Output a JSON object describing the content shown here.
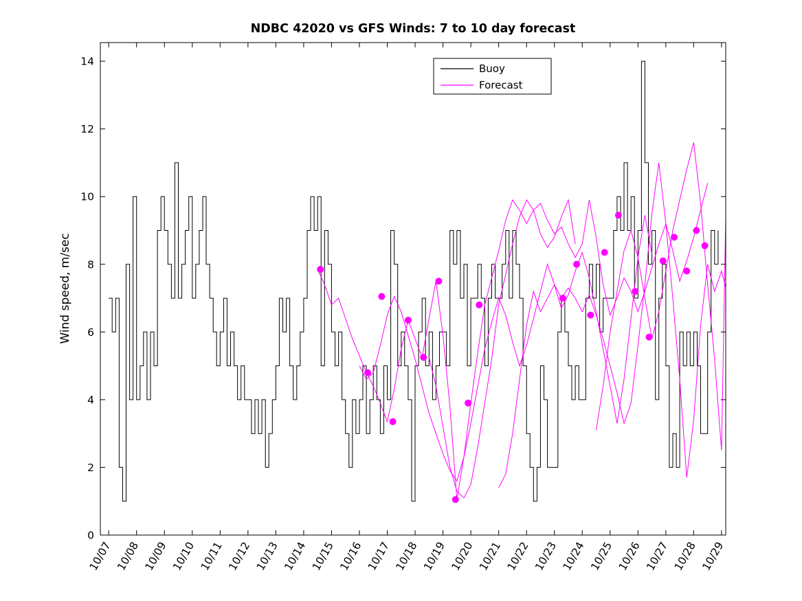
{
  "chart_data": {
    "type": "line",
    "title": "NDBC 42020 vs GFS Winds: 7 to 10 day forecast",
    "xlabel": "",
    "ylabel": "Wind speed, m/sec",
    "grid": false,
    "background": "#FFFFFF",
    "axis_color": "#000000",
    "xlim": [
      -0.3,
      22.15
    ],
    "ylim": [
      0,
      14.55
    ],
    "yticks": [
      0,
      2,
      4,
      6,
      8,
      10,
      12,
      14
    ],
    "x_tick_positions": [
      0,
      1,
      2,
      3,
      4,
      5,
      6,
      7,
      8,
      9,
      10,
      11,
      12,
      13,
      14,
      15,
      16,
      17,
      18,
      19,
      20,
      21,
      22
    ],
    "x_tick_labels": [
      "10/07",
      "10/08",
      "10/09",
      "10/10",
      "10/11",
      "10/12",
      "10/13",
      "10/14",
      "10/15",
      "10/16",
      "10/17",
      "10/18",
      "10/19",
      "10/20",
      "10/21",
      "10/22",
      "10/23",
      "10/24",
      "10/25",
      "10/26",
      "10/27",
      "10/28",
      "10/29"
    ],
    "x_units": "days since 10/07",
    "legend": {
      "position": "top-center",
      "entries": [
        {
          "label": "Buoy",
          "color": "#000000"
        },
        {
          "label": "Forecast",
          "color": "#FF00FF"
        }
      ]
    },
    "series": [
      {
        "name": "Buoy",
        "type": "step",
        "color": "#000000",
        "width": 1,
        "x_start": 0,
        "x_step": 0.125,
        "values": [
          7,
          6,
          7,
          2,
          1,
          8,
          4,
          10,
          4,
          5,
          6,
          4,
          6,
          5,
          9,
          10,
          9,
          8,
          7,
          11,
          7,
          8,
          9,
          10,
          7,
          8,
          9,
          10,
          8,
          7,
          6,
          5,
          6,
          7,
          5,
          6,
          5,
          4,
          5,
          4,
          4,
          3,
          4,
          3,
          4,
          2,
          3,
          4,
          5,
          7,
          6,
          7,
          5,
          4,
          5,
          6,
          7,
          9,
          10,
          9,
          10,
          5,
          9,
          8,
          6,
          5,
          6,
          4,
          3,
          2,
          4,
          3,
          4,
          5,
          3,
          4,
          5,
          4,
          3,
          5,
          4,
          9,
          8,
          5,
          6,
          5,
          4,
          1,
          5,
          6,
          7,
          5,
          6,
          4,
          5,
          6,
          6,
          5,
          9,
          8,
          9,
          7,
          8,
          5,
          7,
          7,
          8,
          7,
          5,
          7,
          8,
          7,
          7,
          8,
          9,
          7,
          9,
          8,
          7,
          5,
          3,
          2,
          1,
          2,
          5,
          4,
          2,
          2,
          2,
          6,
          7,
          6,
          5,
          4,
          5,
          4,
          4,
          7,
          8,
          7,
          8,
          6,
          7,
          7,
          7,
          9,
          10,
          9,
          11,
          9,
          10,
          7,
          9,
          14,
          11,
          8,
          9,
          4,
          7,
          8,
          5,
          2,
          3,
          2,
          6,
          5,
          6,
          5,
          6,
          5,
          3,
          3,
          6,
          9,
          8,
          9
        ]
      },
      {
        "name": "Forecast run 1",
        "type": "line",
        "color": "#FF00FF",
        "width": 1,
        "x_start": 7.5,
        "x_step": 0.25,
        "values": [
          7.85,
          7.4,
          6.8,
          7.0,
          6.4,
          5.8,
          5.3,
          4.8,
          4.4,
          3.9,
          3.35,
          4.3,
          5.5,
          6.35,
          5.8,
          5.25,
          6.4,
          7.5,
          5.9,
          3.8,
          1.05,
          2.3,
          3.9,
          5.4,
          6.8,
          7.6,
          8.4,
          9.3,
          9.9,
          9.6,
          9.2,
          9.6,
          8.9,
          8.5,
          8.8,
          9.4,
          9.9,
          8.6
        ]
      },
      {
        "name": "Forecast run 2",
        "type": "line",
        "color": "#FF00FF",
        "width": 1,
        "x_start": 9.0,
        "x_step": 0.25,
        "values": [
          5.0,
          4.6,
          4.8,
          5.6,
          6.5,
          7.05,
          6.6,
          5.9,
          5.2,
          4.4,
          3.6,
          3.0,
          2.4,
          1.9,
          1.6,
          2.3,
          3.3,
          4.4,
          5.5,
          6.3,
          7.0,
          6.5,
          5.7,
          5.0,
          5.6,
          6.4,
          7.2,
          8.0,
          7.4,
          6.7,
          7.1,
          7.8,
          8.35,
          7.6,
          6.6,
          5.5,
          4.4,
          3.3,
          4.6,
          6.4,
          8.2,
          9.45,
          8.3
        ]
      },
      {
        "name": "Forecast run 3",
        "type": "line",
        "color": "#FF00FF",
        "width": 1,
        "x_start": 11.5,
        "x_step": 0.25,
        "values": [
          5.25,
          4.4,
          3.2,
          2.0,
          1.3,
          1.1,
          1.5,
          2.6,
          3.9,
          5.2,
          6.8,
          7.7,
          8.6,
          9.4,
          9.9,
          9.6,
          9.8,
          9.3,
          8.9,
          9.1,
          8.6,
          8.2,
          8.6,
          9.9,
          8.8,
          7.4,
          6.5,
          7.0,
          7.6,
          7.2,
          6.6,
          7.2,
          7.9,
          8.6,
          9.2,
          8.4,
          7.5,
          8.1,
          8.8,
          9.6,
          10.4
        ]
      },
      {
        "name": "Forecast run 4",
        "type": "line",
        "color": "#FF00FF",
        "width": 1,
        "x_start": 14.0,
        "x_step": 0.25,
        "values": [
          1.4,
          1.8,
          3.0,
          4.6,
          6.2,
          7.2,
          6.6,
          7.0,
          7.4,
          7.0,
          7.3,
          7.0,
          6.6,
          7.1,
          6.5,
          5.8,
          5.0,
          4.2,
          3.3,
          3.9,
          5.6,
          7.4,
          9.5,
          11.0,
          9.2,
          7.0,
          4.6,
          1.7,
          3.4,
          6.2,
          8.0,
          7.2,
          7.8,
          7.0
        ]
      },
      {
        "name": "Forecast run 5",
        "type": "line",
        "color": "#FF00FF",
        "width": 1,
        "x_start": 17.5,
        "x_step": 0.25,
        "values": [
          3.1,
          4.4,
          6.0,
          7.2,
          8.4,
          9.0,
          8.2,
          7.0,
          5.8,
          6.6,
          7.8,
          9.0,
          9.9,
          10.8,
          11.6,
          9.8,
          7.4,
          5.2,
          2.5,
          14.0
        ]
      },
      {
        "name": "Forecast markers",
        "type": "scatter",
        "color": "#FF00FF",
        "marker": "filled-circle",
        "marker_size": 5,
        "points": [
          [
            7.6,
            7.85
          ],
          [
            9.3,
            4.8
          ],
          [
            9.8,
            7.05
          ],
          [
            10.2,
            3.35
          ],
          [
            10.75,
            6.35
          ],
          [
            11.3,
            5.25
          ],
          [
            11.85,
            7.5
          ],
          [
            12.45,
            1.05
          ],
          [
            12.9,
            3.9
          ],
          [
            13.3,
            6.8
          ],
          [
            16.3,
            7.0
          ],
          [
            16.8,
            8.0
          ],
          [
            17.3,
            6.5
          ],
          [
            17.8,
            8.35
          ],
          [
            18.3,
            9.45
          ],
          [
            18.9,
            7.2
          ],
          [
            19.4,
            5.85
          ],
          [
            19.9,
            8.1
          ],
          [
            20.3,
            8.8
          ],
          [
            20.75,
            7.8
          ],
          [
            21.1,
            9.0
          ],
          [
            21.4,
            8.55
          ]
        ]
      }
    ]
  }
}
